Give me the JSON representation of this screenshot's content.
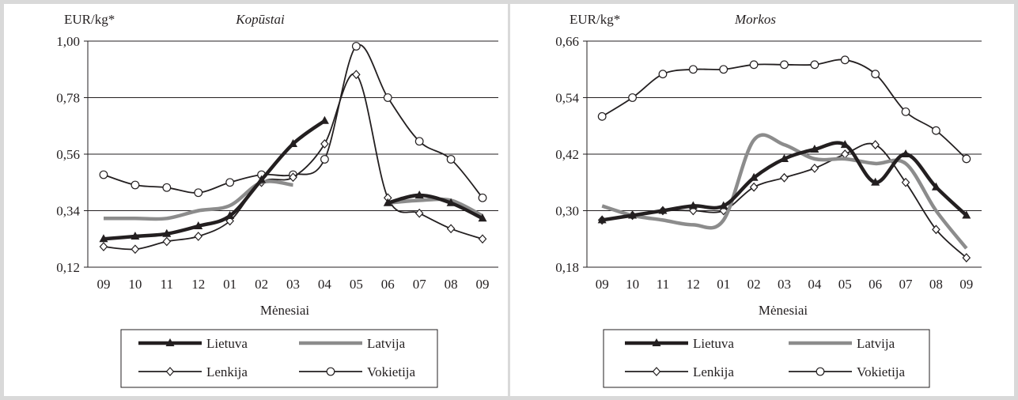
{
  "colors": {
    "lietuva": "#231f20",
    "latvija": "#8c8c8c",
    "lenkija": "#231f20",
    "vokietija": "#231f20",
    "frame": "#d9d9d9"
  },
  "chart_data": [
    {
      "type": "line",
      "title": "Kopūstai",
      "ylabel": "EUR/kg*",
      "xlabel": "Mėnesiai",
      "categories": [
        "09",
        "10",
        "11",
        "12",
        "01",
        "02",
        "03",
        "04",
        "05",
        "06",
        "07",
        "08",
        "09"
      ],
      "ylim": [
        0.12,
        1.0
      ],
      "yticks": [
        "0,12",
        "0,34",
        "0,56",
        "0,78",
        "1,00"
      ],
      "grid": true,
      "legend_position": "bottom",
      "series": [
        {
          "name": "Lietuva",
          "marker": "triangle",
          "values": [
            0.23,
            0.24,
            0.25,
            0.28,
            0.32,
            0.46,
            0.6,
            0.69,
            null,
            0.37,
            0.4,
            0.37,
            0.31
          ]
        },
        {
          "name": "Latvija",
          "marker": "none",
          "values": [
            0.31,
            0.31,
            0.31,
            0.34,
            0.36,
            0.45,
            0.44,
            null,
            null,
            0.37,
            0.38,
            0.38,
            0.32
          ]
        },
        {
          "name": "Lenkija",
          "marker": "diamond",
          "values": [
            0.2,
            0.19,
            0.22,
            0.24,
            0.3,
            0.45,
            0.47,
            0.6,
            0.87,
            0.39,
            0.33,
            0.27,
            0.23
          ]
        },
        {
          "name": "Vokietija",
          "marker": "circle",
          "values": [
            0.48,
            0.44,
            0.43,
            0.41,
            0.45,
            0.48,
            0.48,
            0.54,
            0.98,
            0.78,
            0.61,
            0.54,
            0.39
          ]
        }
      ]
    },
    {
      "type": "line",
      "title": "Morkos",
      "ylabel": "EUR/kg*",
      "xlabel": "Mėnesiai",
      "categories": [
        "09",
        "10",
        "11",
        "12",
        "01",
        "02",
        "03",
        "04",
        "05",
        "06",
        "07",
        "08",
        "09"
      ],
      "ylim": [
        0.18,
        0.66
      ],
      "yticks": [
        "0,18",
        "0,30",
        "0,42",
        "0,54",
        "0,66"
      ],
      "grid": true,
      "legend_position": "bottom",
      "series": [
        {
          "name": "Lietuva",
          "marker": "triangle",
          "values": [
            0.28,
            0.29,
            0.3,
            0.31,
            0.31,
            0.37,
            0.41,
            0.43,
            0.44,
            0.36,
            0.42,
            0.35,
            0.29
          ]
        },
        {
          "name": "Latvija",
          "marker": "none",
          "values": [
            0.31,
            0.29,
            0.28,
            0.27,
            0.28,
            0.45,
            0.44,
            0.41,
            0.41,
            0.4,
            0.4,
            0.3,
            0.22
          ]
        },
        {
          "name": "Lenkija",
          "marker": "diamond",
          "values": [
            0.28,
            0.29,
            0.3,
            0.3,
            0.3,
            0.35,
            0.37,
            0.39,
            0.42,
            0.44,
            0.36,
            0.26,
            0.2
          ]
        },
        {
          "name": "Vokietija",
          "marker": "circle",
          "values": [
            0.5,
            0.54,
            0.59,
            0.6,
            0.6,
            0.61,
            0.61,
            0.61,
            0.62,
            0.59,
            0.51,
            0.47,
            0.41
          ]
        }
      ]
    }
  ]
}
